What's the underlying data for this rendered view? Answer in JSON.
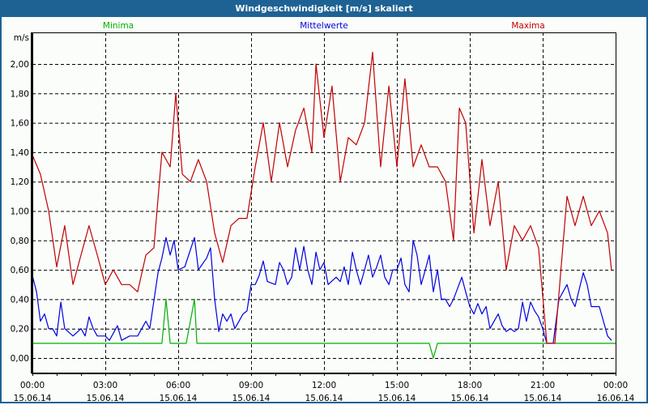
{
  "window": {
    "title": "Windgeschwindigkeit [m/s] skaliert"
  },
  "chart_data": {
    "type": "line",
    "title": "Windgeschwindigkeit [m/s] skaliert",
    "ylabel": "m/s",
    "xlabel": "",
    "ylim": [
      -0.1,
      2.21
    ],
    "xlim_hours": [
      0,
      24
    ],
    "grid": true,
    "yticks": [
      {
        "v": 0,
        "label": "0,00"
      },
      {
        "v": 0.2,
        "label": "0,20"
      },
      {
        "v": 0.4,
        "label": "0,40"
      },
      {
        "v": 0.6,
        "label": "0,60"
      },
      {
        "v": 0.8,
        "label": "0,80"
      },
      {
        "v": 1.0,
        "label": "1,00"
      },
      {
        "v": 1.2,
        "label": "1,20"
      },
      {
        "v": 1.4,
        "label": "1,40"
      },
      {
        "v": 1.6,
        "label": "1,60"
      },
      {
        "v": 1.8,
        "label": "1,80"
      },
      {
        "v": 2.0,
        "label": "2,00"
      }
    ],
    "xticks": [
      {
        "h": 0,
        "time": "00:00",
        "date": "15.06.14"
      },
      {
        "h": 3,
        "time": "03:00",
        "date": "15.06.14"
      },
      {
        "h": 6,
        "time": "06:00",
        "date": "15.06.14"
      },
      {
        "h": 9,
        "time": "09:00",
        "date": "15.06.14"
      },
      {
        "h": 12,
        "time": "12:00",
        "date": "15.06.14"
      },
      {
        "h": 15,
        "time": "15:00",
        "date": "15.06.14"
      },
      {
        "h": 18,
        "time": "18:00",
        "date": "15.06.14"
      },
      {
        "h": 21,
        "time": "21:00",
        "date": "15.06.14"
      },
      {
        "h": 24,
        "time": "00:00",
        "date": "16.06.14"
      }
    ],
    "series": [
      {
        "name": "Minima",
        "color": "#00b000",
        "legend_pos": "top-left",
        "points": [
          [
            0,
            0.1
          ],
          [
            5.33,
            0.1
          ],
          [
            5.5,
            0.4
          ],
          [
            5.67,
            0.1
          ],
          [
            6.33,
            0.1
          ],
          [
            6.67,
            0.4
          ],
          [
            6.77,
            0.1
          ],
          [
            16.33,
            0.1
          ],
          [
            16.5,
            0
          ],
          [
            16.67,
            0.1
          ],
          [
            24,
            0.1
          ]
        ]
      },
      {
        "name": "Mittelwerte",
        "color": "#0000e0",
        "legend_pos": "top-center",
        "points": [
          [
            0,
            0.56
          ],
          [
            0.17,
            0.45
          ],
          [
            0.33,
            0.25
          ],
          [
            0.5,
            0.3
          ],
          [
            0.67,
            0.2
          ],
          [
            0.83,
            0.2
          ],
          [
            1,
            0.15
          ],
          [
            1.17,
            0.38
          ],
          [
            1.33,
            0.2
          ],
          [
            1.67,
            0.15
          ],
          [
            2,
            0.2
          ],
          [
            2.17,
            0.15
          ],
          [
            2.33,
            0.28
          ],
          [
            2.5,
            0.2
          ],
          [
            2.67,
            0.15
          ],
          [
            3,
            0.15
          ],
          [
            3.17,
            0.12
          ],
          [
            3.5,
            0.22
          ],
          [
            3.67,
            0.12
          ],
          [
            4,
            0.15
          ],
          [
            4.33,
            0.15
          ],
          [
            4.67,
            0.25
          ],
          [
            4.83,
            0.2
          ],
          [
            5.17,
            0.58
          ],
          [
            5.33,
            0.68
          ],
          [
            5.5,
            0.82
          ],
          [
            5.67,
            0.7
          ],
          [
            5.83,
            0.8
          ],
          [
            6,
            0.6
          ],
          [
            6.27,
            0.62
          ],
          [
            6.67,
            0.82
          ],
          [
            6.83,
            0.6
          ],
          [
            7.17,
            0.68
          ],
          [
            7.33,
            0.75
          ],
          [
            7.5,
            0.4
          ],
          [
            7.67,
            0.18
          ],
          [
            7.83,
            0.3
          ],
          [
            8,
            0.25
          ],
          [
            8.17,
            0.3
          ],
          [
            8.33,
            0.2
          ],
          [
            8.67,
            0.3
          ],
          [
            8.83,
            0.32
          ],
          [
            9,
            0.5
          ],
          [
            9.17,
            0.5
          ],
          [
            9.33,
            0.56
          ],
          [
            9.5,
            0.66
          ],
          [
            9.67,
            0.52
          ],
          [
            10,
            0.5
          ],
          [
            10.17,
            0.65
          ],
          [
            10.33,
            0.6
          ],
          [
            10.5,
            0.5
          ],
          [
            10.67,
            0.55
          ],
          [
            10.83,
            0.75
          ],
          [
            11,
            0.6
          ],
          [
            11.17,
            0.76
          ],
          [
            11.33,
            0.6
          ],
          [
            11.5,
            0.5
          ],
          [
            11.67,
            0.72
          ],
          [
            11.83,
            0.6
          ],
          [
            12,
            0.65
          ],
          [
            12.17,
            0.5
          ],
          [
            12.5,
            0.55
          ],
          [
            12.67,
            0.52
          ],
          [
            12.83,
            0.62
          ],
          [
            13,
            0.5
          ],
          [
            13.17,
            0.72
          ],
          [
            13.33,
            0.6
          ],
          [
            13.5,
            0.5
          ],
          [
            13.67,
            0.6
          ],
          [
            13.83,
            0.7
          ],
          [
            14,
            0.55
          ],
          [
            14.17,
            0.62
          ],
          [
            14.33,
            0.7
          ],
          [
            14.5,
            0.55
          ],
          [
            14.67,
            0.5
          ],
          [
            14.83,
            0.6
          ],
          [
            15,
            0.6
          ],
          [
            15.17,
            0.68
          ],
          [
            15.33,
            0.5
          ],
          [
            15.5,
            0.45
          ],
          [
            15.67,
            0.8
          ],
          [
            15.83,
            0.7
          ],
          [
            16,
            0.5
          ],
          [
            16.17,
            0.6
          ],
          [
            16.33,
            0.7
          ],
          [
            16.5,
            0.45
          ],
          [
            16.67,
            0.6
          ],
          [
            16.83,
            0.4
          ],
          [
            17,
            0.4
          ],
          [
            17.17,
            0.35
          ],
          [
            17.33,
            0.4
          ],
          [
            17.67,
            0.55
          ],
          [
            17.83,
            0.45
          ],
          [
            18,
            0.35
          ],
          [
            18.17,
            0.3
          ],
          [
            18.33,
            0.37
          ],
          [
            18.5,
            0.3
          ],
          [
            18.67,
            0.35
          ],
          [
            18.83,
            0.2
          ],
          [
            19,
            0.25
          ],
          [
            19.17,
            0.3
          ],
          [
            19.33,
            0.22
          ],
          [
            19.5,
            0.18
          ],
          [
            19.67,
            0.2
          ],
          [
            19.83,
            0.18
          ],
          [
            20,
            0.2
          ],
          [
            20.17,
            0.38
          ],
          [
            20.33,
            0.25
          ],
          [
            20.5,
            0.38
          ],
          [
            20.67,
            0.32
          ],
          [
            20.83,
            0.28
          ],
          [
            21,
            0.2
          ],
          [
            21.17,
            0.1
          ],
          [
            21.43,
            0.1
          ],
          [
            21.67,
            0.4
          ],
          [
            22,
            0.5
          ],
          [
            22.17,
            0.4
          ],
          [
            22.33,
            0.35
          ],
          [
            22.67,
            0.58
          ],
          [
            22.83,
            0.5
          ],
          [
            23,
            0.35
          ],
          [
            23.33,
            0.35
          ],
          [
            23.5,
            0.25
          ],
          [
            23.67,
            0.15
          ],
          [
            23.83,
            0.12
          ]
        ]
      },
      {
        "name": "Maxima",
        "color": "#c00000",
        "legend_pos": "top-right",
        "points": [
          [
            0,
            1.38
          ],
          [
            0.33,
            1.25
          ],
          [
            0.67,
            1.0
          ],
          [
            1,
            0.62
          ],
          [
            1.33,
            0.9
          ],
          [
            1.67,
            0.5
          ],
          [
            2,
            0.7
          ],
          [
            2.33,
            0.9
          ],
          [
            2.67,
            0.7
          ],
          [
            3,
            0.5
          ],
          [
            3.33,
            0.6
          ],
          [
            3.67,
            0.5
          ],
          [
            4,
            0.5
          ],
          [
            4.33,
            0.45
          ],
          [
            4.67,
            0.7
          ],
          [
            5,
            0.75
          ],
          [
            5.33,
            1.4
          ],
          [
            5.67,
            1.3
          ],
          [
            5.9,
            1.8
          ],
          [
            6.17,
            1.25
          ],
          [
            6.5,
            1.2
          ],
          [
            6.83,
            1.35
          ],
          [
            7.17,
            1.2
          ],
          [
            7.5,
            0.85
          ],
          [
            7.83,
            0.65
          ],
          [
            8.17,
            0.9
          ],
          [
            8.5,
            0.95
          ],
          [
            8.83,
            0.95
          ],
          [
            9.17,
            1.3
          ],
          [
            9.5,
            1.6
          ],
          [
            9.83,
            1.2
          ],
          [
            10.17,
            1.6
          ],
          [
            10.5,
            1.3
          ],
          [
            10.83,
            1.55
          ],
          [
            11.17,
            1.7
          ],
          [
            11.5,
            1.4
          ],
          [
            11.67,
            2.0
          ],
          [
            12,
            1.5
          ],
          [
            12.33,
            1.85
          ],
          [
            12.67,
            1.2
          ],
          [
            13,
            1.5
          ],
          [
            13.33,
            1.45
          ],
          [
            13.67,
            1.6
          ],
          [
            14,
            2.08
          ],
          [
            14.33,
            1.3
          ],
          [
            14.67,
            1.85
          ],
          [
            15,
            1.3
          ],
          [
            15.33,
            1.9
          ],
          [
            15.67,
            1.3
          ],
          [
            16,
            1.45
          ],
          [
            16.33,
            1.3
          ],
          [
            16.67,
            1.3
          ],
          [
            17,
            1.2
          ],
          [
            17.33,
            0.8
          ],
          [
            17.57,
            1.7
          ],
          [
            17.83,
            1.6
          ],
          [
            18.17,
            0.85
          ],
          [
            18.5,
            1.35
          ],
          [
            18.83,
            0.9
          ],
          [
            19.17,
            1.2
          ],
          [
            19.5,
            0.6
          ],
          [
            19.83,
            0.9
          ],
          [
            20.17,
            0.8
          ],
          [
            20.5,
            0.9
          ],
          [
            20.83,
            0.75
          ],
          [
            21.17,
            0.1
          ],
          [
            21.5,
            0.1
          ],
          [
            22,
            1.1
          ],
          [
            22.33,
            0.9
          ],
          [
            22.67,
            1.1
          ],
          [
            23,
            0.9
          ],
          [
            23.33,
            1.0
          ],
          [
            23.67,
            0.85
          ],
          [
            23.83,
            0.6
          ]
        ]
      }
    ]
  }
}
